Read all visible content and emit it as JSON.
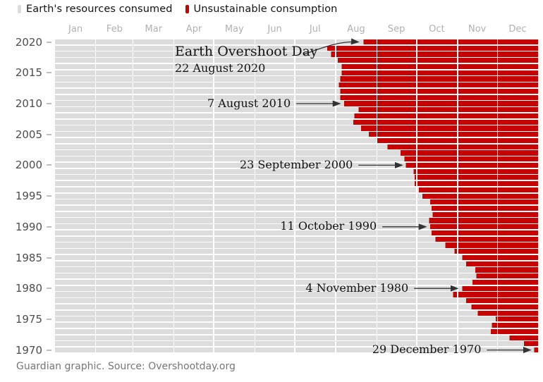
{
  "legend": {
    "items": [
      {
        "label": "Earth's resources consumed",
        "color": "#dcdcdc"
      },
      {
        "label": "Unsustainable consumption",
        "color": "#c70000"
      }
    ]
  },
  "footer": {
    "text": "Guardian graphic. Source: Overshootday.org"
  },
  "chart_data": {
    "type": "bar",
    "orientation": "horizontal",
    "title": "Earth Overshoot Day",
    "legend_position": "top",
    "grid": false,
    "colors": {
      "consumed": "#dcdcdc",
      "unsustainable": "#c70000",
      "annotation": "#121212",
      "arrow": "#333333",
      "month_label": "#b0b0b0",
      "year_label": "#4d4d4d",
      "tick": "#bdbdbd",
      "legend_text": "#121212",
      "footer": "#767676"
    },
    "x_axis": {
      "tick_labels": [
        "Jan",
        "Feb",
        "Mar",
        "Apr",
        "May",
        "Jun",
        "Jul",
        "Aug",
        "Sep",
        "Oct",
        "Nov",
        "Dec"
      ],
      "month_days": [
        31,
        28,
        31,
        30,
        31,
        30,
        31,
        31,
        30,
        31,
        30,
        31
      ],
      "range_days": [
        1,
        365
      ]
    },
    "y_axis": {
      "tick_labels": [
        "2020",
        "2015",
        "2010",
        "2005",
        "2000",
        "1995",
        "1990",
        "1985",
        "1980",
        "1975",
        "1970"
      ],
      "range": [
        1970,
        2020
      ]
    },
    "series": [
      {
        "name": "Earth's resources consumed",
        "color": "#dcdcdc"
      },
      {
        "name": "Unsustainable consumption",
        "color": "#c70000"
      }
    ],
    "years": [
      {
        "y": 2020,
        "date": "22 August",
        "d": 234
      },
      {
        "y": 2019,
        "date": "26 July",
        "d": 207
      },
      {
        "y": 2018,
        "date": "29 July",
        "d": 210
      },
      {
        "y": 2017,
        "date": "2 August",
        "d": 214
      },
      {
        "y": 2016,
        "date": "5 August",
        "d": 217
      },
      {
        "y": 2015,
        "date": "5 August",
        "d": 217
      },
      {
        "y": 2014,
        "date": "4 August",
        "d": 216
      },
      {
        "y": 2013,
        "date": "3 August",
        "d": 215
      },
      {
        "y": 2012,
        "date": "4 August",
        "d": 216
      },
      {
        "y": 2011,
        "date": "4 August",
        "d": 216
      },
      {
        "y": 2010,
        "date": "7 August",
        "d": 219
      },
      {
        "y": 2009,
        "date": "18 August",
        "d": 230
      },
      {
        "y": 2008,
        "date": "15 August",
        "d": 227
      },
      {
        "y": 2007,
        "date": "14 August",
        "d": 226
      },
      {
        "y": 2006,
        "date": "20 August",
        "d": 232
      },
      {
        "y": 2005,
        "date": "26 August",
        "d": 238
      },
      {
        "y": 2004,
        "date": "1 September",
        "d": 244
      },
      {
        "y": 2003,
        "date": "9 September",
        "d": 252
      },
      {
        "y": 2002,
        "date": "19 September",
        "d": 262
      },
      {
        "y": 2001,
        "date": "22 September",
        "d": 265
      },
      {
        "y": 2000,
        "date": "23 September",
        "d": 266
      },
      {
        "y": 1999,
        "date": "29 September",
        "d": 272
      },
      {
        "y": 1998,
        "date": "30 September",
        "d": 273
      },
      {
        "y": 1997,
        "date": "30 September",
        "d": 273
      },
      {
        "y": 1996,
        "date": "2 October",
        "d": 275
      },
      {
        "y": 1995,
        "date": "5 October",
        "d": 278
      },
      {
        "y": 1994,
        "date": "11 October",
        "d": 284
      },
      {
        "y": 1993,
        "date": "12 October",
        "d": 285
      },
      {
        "y": 1992,
        "date": "13 October",
        "d": 286
      },
      {
        "y": 1991,
        "date": "10 October",
        "d": 283
      },
      {
        "y": 1990,
        "date": "11 October",
        "d": 284
      },
      {
        "y": 1989,
        "date": "12 October",
        "d": 285
      },
      {
        "y": 1988,
        "date": "15 October",
        "d": 288
      },
      {
        "y": 1987,
        "date": "23 October",
        "d": 296
      },
      {
        "y": 1986,
        "date": "30 October",
        "d": 303
      },
      {
        "y": 1985,
        "date": "4 November",
        "d": 308
      },
      {
        "y": 1984,
        "date": "7 November",
        "d": 311
      },
      {
        "y": 1983,
        "date": "14 November",
        "d": 318
      },
      {
        "y": 1982,
        "date": "15 November",
        "d": 319
      },
      {
        "y": 1981,
        "date": "12 November",
        "d": 316
      },
      {
        "y": 1980,
        "date": "4 November",
        "d": 308
      },
      {
        "y": 1979,
        "date": "29 October",
        "d": 302
      },
      {
        "y": 1978,
        "date": "7 November",
        "d": 311
      },
      {
        "y": 1977,
        "date": "11 November",
        "d": 315
      },
      {
        "y": 1976,
        "date": "16 November",
        "d": 320
      },
      {
        "y": 1975,
        "date": "30 November",
        "d": 334
      },
      {
        "y": 1974,
        "date": "27 November",
        "d": 331
      },
      {
        "y": 1973,
        "date": "26 November",
        "d": 330
      },
      {
        "y": 1972,
        "date": "10 December",
        "d": 344
      },
      {
        "y": 1971,
        "date": "21 December",
        "d": 355
      },
      {
        "y": 1970,
        "date": "29 December",
        "d": 363
      }
    ],
    "annotations": [
      {
        "type": "headline",
        "text": "Earth Overshoot Day",
        "subtext": "22 August 2020",
        "year": 2020
      },
      {
        "type": "plain",
        "text": "7 August 2010",
        "year": 2010
      },
      {
        "type": "plain",
        "text": "23 September 2000",
        "year": 2000
      },
      {
        "type": "plain",
        "text": "11 October 1990",
        "year": 1990
      },
      {
        "type": "plain",
        "text": "4 November 1980",
        "year": 1980
      },
      {
        "type": "plain",
        "text": "29 December 1970",
        "year": 1970
      }
    ]
  }
}
